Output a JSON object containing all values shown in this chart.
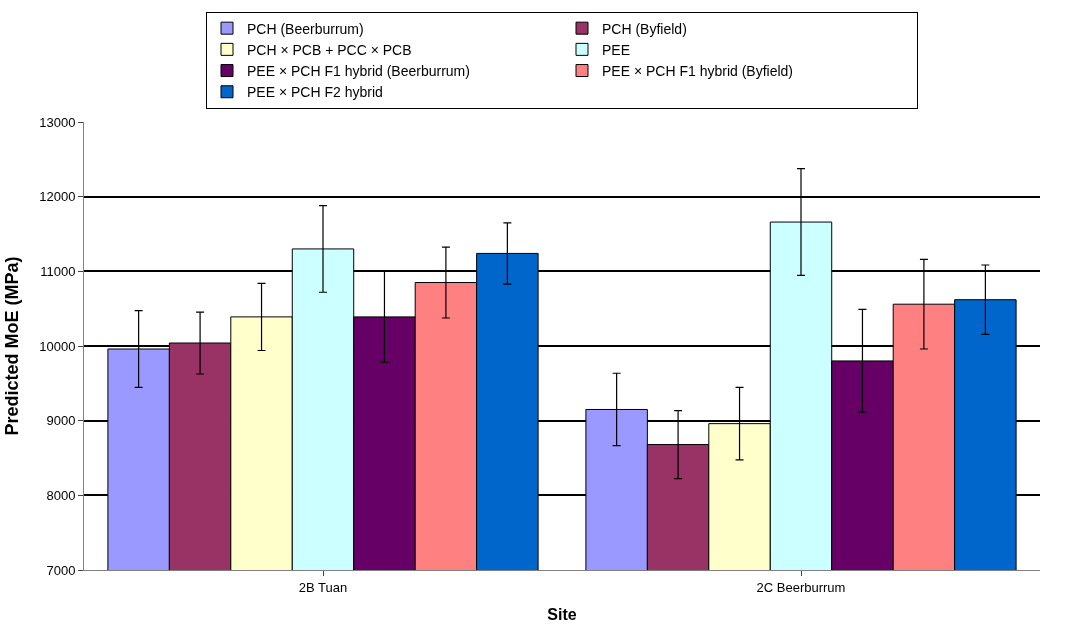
{
  "chart_data": {
    "type": "bar",
    "xlabel": "Site",
    "ylabel": "Predicted MoE (MPa)",
    "categories": [
      "2B Tuan",
      "2C Beerburrum"
    ],
    "series": [
      {
        "name": "PCH (Beerburrum)",
        "color": "#9999ff",
        "values": [
          9960,
          9150
        ],
        "errors": [
          515,
          485
        ]
      },
      {
        "name": "PCH (Byfield)",
        "color": "#993366",
        "values": [
          10040,
          8680
        ],
        "errors": [
          415,
          455
        ]
      },
      {
        "name": "PCH × PCB + PCC × PCB",
        "color": "#ffffcc",
        "values": [
          10390,
          8960
        ],
        "errors": [
          450,
          485
        ]
      },
      {
        "name": "PEE",
        "color": "#ccffff",
        "values": [
          11300,
          11660
        ],
        "errors": [
          580,
          715
        ]
      },
      {
        "name": "PEE × PCH F1 hybrid (Beerburrum)",
        "color": "#660066",
        "values": [
          10390,
          9800
        ],
        "errors": [
          610,
          690
        ]
      },
      {
        "name": "PEE × PCH F1 hybrid (Byfield)",
        "color": "#ff8080",
        "values": [
          10850,
          10560
        ],
        "errors": [
          475,
          600
        ]
      },
      {
        "name": "PEE × PCH F2 hybrid",
        "color": "#0066cc",
        "values": [
          11240,
          10620
        ],
        "errors": [
          410,
          465
        ]
      }
    ],
    "ylim": [
      7000,
      13000
    ],
    "yticks": [
      7000,
      8000,
      9000,
      10000,
      11000,
      12000,
      13000
    ],
    "grid": "y",
    "legend": "top"
  }
}
